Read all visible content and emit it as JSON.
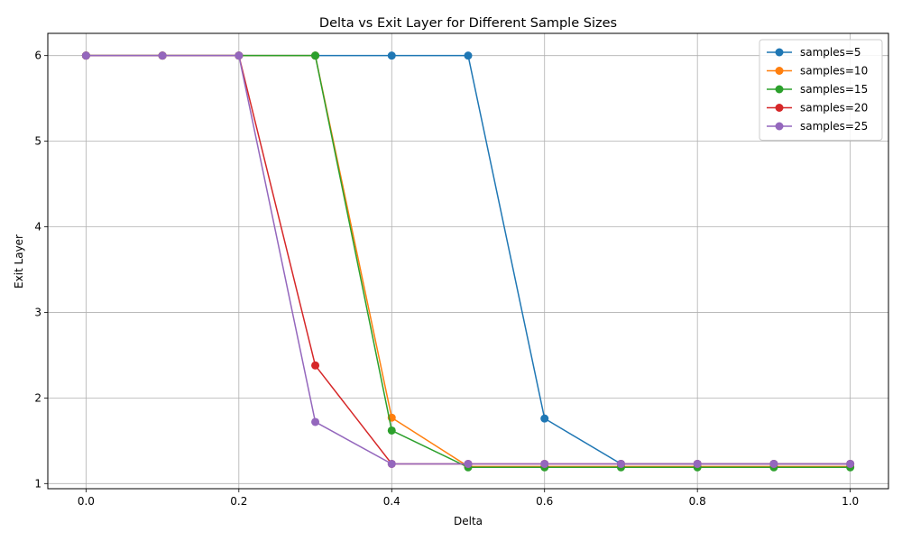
{
  "chart_data": {
    "type": "line",
    "title": "Delta vs Exit Layer for Different Sample Sizes",
    "xlabel": "Delta",
    "ylabel": "Exit Layer",
    "xlim": [
      -0.05,
      1.05
    ],
    "ylim": [
      0.94,
      6.26
    ],
    "xticks": [
      0.0,
      0.2,
      0.4,
      0.6,
      0.8,
      1.0
    ],
    "xtick_labels": [
      "0.0",
      "0.2",
      "0.4",
      "0.6",
      "0.8",
      "1.0"
    ],
    "yticks": [
      1,
      2,
      3,
      4,
      5,
      6
    ],
    "ytick_labels": [
      "1",
      "2",
      "3",
      "4",
      "5",
      "6"
    ],
    "grid": true,
    "legend_position": "top-right",
    "x": [
      0.0,
      0.1,
      0.2,
      0.3,
      0.4,
      0.5,
      0.6,
      0.7,
      0.8,
      0.9,
      1.0
    ],
    "series": [
      {
        "name": "samples=5",
        "color": "#1f77b4",
        "values": [
          6,
          6,
          6,
          6,
          6,
          6,
          1.76,
          1.23,
          1.23,
          1.23,
          1.23
        ]
      },
      {
        "name": "samples=10",
        "color": "#ff7f0e",
        "values": [
          6,
          6,
          6,
          6,
          1.77,
          1.2,
          1.2,
          1.2,
          1.2,
          1.2,
          1.2
        ]
      },
      {
        "name": "samples=15",
        "color": "#2ca02c",
        "values": [
          6,
          6,
          6,
          6,
          1.62,
          1.19,
          1.19,
          1.19,
          1.19,
          1.19,
          1.19
        ]
      },
      {
        "name": "samples=20",
        "color": "#d62728",
        "values": [
          6,
          6,
          6,
          2.38,
          1.23,
          1.23,
          1.23,
          1.23,
          1.23,
          1.23,
          1.23
        ]
      },
      {
        "name": "samples=25",
        "color": "#9467bd",
        "values": [
          6,
          6,
          6,
          1.72,
          1.23,
          1.23,
          1.23,
          1.23,
          1.23,
          1.23,
          1.23
        ]
      }
    ]
  }
}
